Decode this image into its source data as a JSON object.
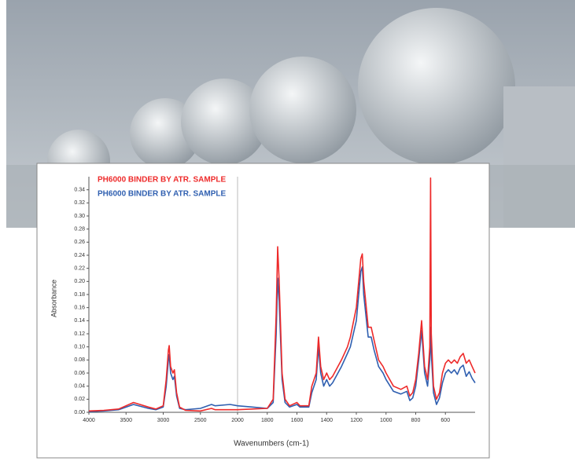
{
  "chart_data": {
    "type": "line",
    "x_label": "Wavenumbers (cm-1)",
    "y_label": "Absorbance",
    "xlim": [
      4000,
      400
    ],
    "x_scale_change": 2000,
    "xticks": [
      4000,
      3500,
      3000,
      2500,
      2000,
      1800,
      1600,
      1400,
      1200,
      1000,
      800,
      600
    ],
    "ylim": [
      0,
      0.36
    ],
    "yticks": [
      {
        "value": 0,
        "label": "0.00"
      },
      {
        "value": 0.02,
        "label": "0.02"
      },
      {
        "value": 0.04,
        "label": "0.04"
      },
      {
        "value": 0.06,
        "label": "0.06"
      },
      {
        "value": 0.08,
        "label": "0.08"
      },
      {
        "value": 0.1,
        "label": "0.10"
      },
      {
        "value": 0.12,
        "label": "0.12"
      },
      {
        "value": 0.14,
        "label": "0.14"
      },
      {
        "value": 0.16,
        "label": "0.16"
      },
      {
        "value": 0.18,
        "label": "0.18"
      },
      {
        "value": 0.2,
        "label": "0.20"
      },
      {
        "value": 0.22,
        "label": "0.22"
      },
      {
        "value": 0.24,
        "label": "0.24"
      },
      {
        "value": 0.26,
        "label": "0.26"
      },
      {
        "value": 0.28,
        "label": "0.28"
      },
      {
        "value": 0.3,
        "label": "0.30"
      },
      {
        "value": 0.32,
        "label": "0.32"
      },
      {
        "value": 0.34,
        "label": "0.34"
      }
    ],
    "x": [
      4000,
      3800,
      3600,
      3400,
      3200,
      3100,
      3000,
      2960,
      2930,
      2920,
      2900,
      2870,
      2850,
      2820,
      2780,
      2700,
      2500,
      2350,
      2300,
      2100,
      2000,
      1900,
      1800,
      1760,
      1740,
      1730,
      1720,
      1700,
      1680,
      1650,
      1600,
      1580,
      1520,
      1500,
      1470,
      1455,
      1440,
      1420,
      1400,
      1380,
      1360,
      1300,
      1260,
      1240,
      1200,
      1170,
      1160,
      1150,
      1120,
      1100,
      1080,
      1050,
      1020,
      1000,
      950,
      900,
      860,
      840,
      820,
      800,
      780,
      760,
      740,
      720,
      705,
      700,
      695,
      680,
      660,
      640,
      620,
      600,
      580,
      560,
      540,
      520,
      500,
      480,
      460,
      440,
      420,
      400
    ],
    "series": [
      {
        "name": "PH6000 BINDER BY ATR. SAMPLE",
        "color": "#ee2a2a",
        "values": [
          0.002,
          0.003,
          0.005,
          0.015,
          0.008,
          0.005,
          0.01,
          0.05,
          0.095,
          0.102,
          0.07,
          0.06,
          0.065,
          0.03,
          0.008,
          0.003,
          0.002,
          0.006,
          0.004,
          0.004,
          0.004,
          0.005,
          0.006,
          0.02,
          0.15,
          0.253,
          0.2,
          0.06,
          0.02,
          0.01,
          0.015,
          0.01,
          0.01,
          0.04,
          0.06,
          0.115,
          0.07,
          0.05,
          0.06,
          0.05,
          0.055,
          0.08,
          0.1,
          0.115,
          0.16,
          0.235,
          0.242,
          0.2,
          0.13,
          0.13,
          0.11,
          0.08,
          0.07,
          0.06,
          0.04,
          0.035,
          0.04,
          0.025,
          0.03,
          0.05,
          0.09,
          0.14,
          0.07,
          0.05,
          0.1,
          0.358,
          0.12,
          0.04,
          0.02,
          0.03,
          0.06,
          0.075,
          0.08,
          0.075,
          0.08,
          0.075,
          0.085,
          0.09,
          0.075,
          0.08,
          0.07,
          0.06
        ]
      },
      {
        "name": "PH6000 BINDER BY ATR. SAMPLE",
        "color": "#2f5fb0",
        "values": [
          0.001,
          0.002,
          0.004,
          0.012,
          0.006,
          0.004,
          0.008,
          0.04,
          0.08,
          0.088,
          0.06,
          0.05,
          0.055,
          0.025,
          0.006,
          0.004,
          0.006,
          0.012,
          0.01,
          0.012,
          0.01,
          0.008,
          0.006,
          0.015,
          0.12,
          0.205,
          0.17,
          0.05,
          0.015,
          0.008,
          0.012,
          0.008,
          0.008,
          0.03,
          0.05,
          0.1,
          0.06,
          0.04,
          0.05,
          0.04,
          0.045,
          0.07,
          0.09,
          0.1,
          0.14,
          0.215,
          0.222,
          0.18,
          0.115,
          0.115,
          0.095,
          0.07,
          0.06,
          0.05,
          0.032,
          0.028,
          0.032,
          0.018,
          0.022,
          0.04,
          0.08,
          0.125,
          0.06,
          0.04,
          0.08,
          0.13,
          0.09,
          0.03,
          0.012,
          0.022,
          0.045,
          0.06,
          0.065,
          0.06,
          0.065,
          0.058,
          0.068,
          0.072,
          0.055,
          0.062,
          0.052,
          0.045
        ]
      }
    ]
  }
}
